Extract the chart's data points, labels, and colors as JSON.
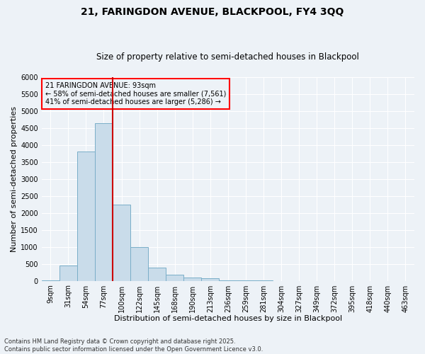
{
  "title1": "21, FARINGDON AVENUE, BLACKPOOL, FY4 3QQ",
  "title2": "Size of property relative to semi-detached houses in Blackpool",
  "xlabel": "Distribution of semi-detached houses by size in Blackpool",
  "ylabel": "Number of semi-detached properties",
  "categories": [
    "9sqm",
    "31sqm",
    "54sqm",
    "77sqm",
    "100sqm",
    "122sqm",
    "145sqm",
    "168sqm",
    "190sqm",
    "213sqm",
    "236sqm",
    "259sqm",
    "281sqm",
    "304sqm",
    "327sqm",
    "349sqm",
    "372sqm",
    "395sqm",
    "418sqm",
    "440sqm",
    "463sqm"
  ],
  "bar_values": [
    20,
    450,
    3800,
    4650,
    2250,
    1000,
    380,
    175,
    100,
    75,
    20,
    5,
    3,
    2,
    1,
    0,
    0,
    0,
    0,
    0,
    0
  ],
  "bar_color": "#c9dcea",
  "bar_edgecolor": "#7aaec8",
  "vline_color": "#cc0000",
  "annotation_title": "21 FARINGDON AVENUE: 93sqm",
  "annotation_line1": "← 58% of semi-detached houses are smaller (7,561)",
  "annotation_line2": "41% of semi-detached houses are larger (5,286) →",
  "ylim": [
    0,
    6000
  ],
  "yticks": [
    0,
    500,
    1000,
    1500,
    2000,
    2500,
    3000,
    3500,
    4000,
    4500,
    5000,
    5500,
    6000
  ],
  "background_color": "#edf2f7",
  "grid_color": "#ffffff",
  "footer": "Contains HM Land Registry data © Crown copyright and database right 2025.\nContains public sector information licensed under the Open Government Licence v3.0.",
  "title_fontsize": 10,
  "subtitle_fontsize": 8.5,
  "axis_label_fontsize": 8,
  "tick_fontsize": 7,
  "annotation_fontsize": 7,
  "footer_fontsize": 6
}
